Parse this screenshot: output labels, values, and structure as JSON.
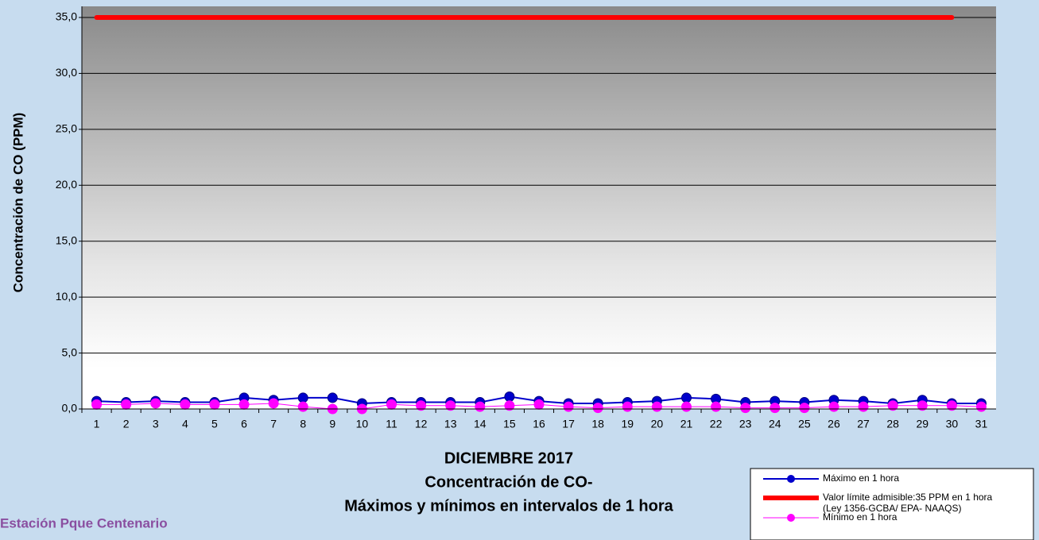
{
  "chart_data": {
    "type": "line",
    "title_lines": [
      "DICIEMBRE 2017",
      "Concentración de CO-",
      "Máximos y mínimos en intervalos de 1 hora"
    ],
    "footer": "Estación Pque Centenario",
    "y_label": "Concentración de CO (PPM)",
    "categories": [
      "1",
      "2",
      "3",
      "4",
      "5",
      "6",
      "7",
      "8",
      "9",
      "10",
      "11",
      "12",
      "13",
      "14",
      "15",
      "16",
      "17",
      "18",
      "19",
      "20",
      "21",
      "22",
      "23",
      "24",
      "25",
      "26",
      "27",
      "28",
      "29",
      "30",
      "31"
    ],
    "ylim": [
      0,
      35
    ],
    "yticks": [
      {
        "value": 0,
        "label": "0,0"
      },
      {
        "value": 5,
        "label": "5,0"
      },
      {
        "value": 10,
        "label": "10,0"
      },
      {
        "value": 15,
        "label": "15,0"
      },
      {
        "value": 20,
        "label": "20,0"
      },
      {
        "value": 25,
        "label": "25,0"
      },
      {
        "value": 30,
        "label": "30,0"
      },
      {
        "value": 35,
        "label": "35,0"
      }
    ],
    "grid": true,
    "legend_position": "bottom-right",
    "series": [
      {
        "name": "Máximo en 1 hora",
        "color": "#0000cc",
        "marker": true,
        "width": 2,
        "values": [
          0.7,
          0.6,
          0.7,
          0.6,
          0.6,
          1.0,
          0.8,
          1.0,
          1.0,
          0.5,
          0.6,
          0.6,
          0.6,
          0.6,
          1.1,
          0.7,
          0.5,
          0.5,
          0.6,
          0.7,
          1.0,
          0.9,
          0.6,
          0.7,
          0.6,
          0.8,
          0.7,
          0.5,
          0.8,
          0.5,
          0.5
        ]
      },
      {
        "name": "Valor límite admisible:35 PPM en 1 hora",
        "legend_note": "(Ley 1356-GCBA/ EPA- NAAQS)",
        "color": "#ff0000",
        "marker": false,
        "width": 6,
        "values": [
          35,
          35,
          35,
          35,
          35,
          35,
          35,
          35,
          35,
          35,
          35,
          35,
          35,
          35,
          35,
          35,
          35,
          35,
          35,
          35,
          35,
          35,
          35,
          35,
          35,
          35,
          35,
          35,
          35,
          35,
          null
        ]
      },
      {
        "name": "Mínimo en 1 hora",
        "color": "#ff00ff",
        "marker": true,
        "width": 1,
        "values": [
          0.4,
          0.4,
          0.5,
          0.4,
          0.4,
          0.4,
          0.5,
          0.2,
          0.0,
          0.0,
          0.4,
          0.3,
          0.3,
          0.2,
          0.3,
          0.4,
          0.2,
          0.1,
          0.2,
          0.2,
          0.2,
          0.2,
          0.1,
          0.1,
          0.1,
          0.2,
          0.2,
          0.3,
          0.3,
          0.3,
          0.2
        ]
      }
    ]
  }
}
